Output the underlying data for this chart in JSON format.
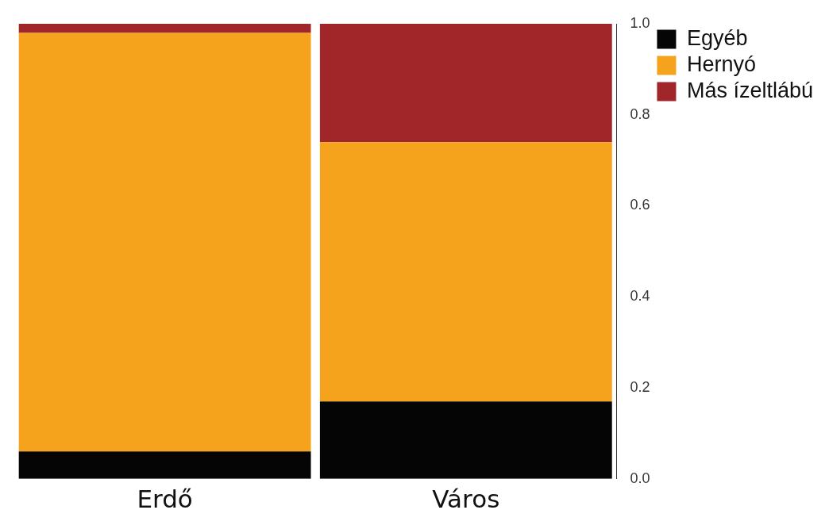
{
  "chart_data": {
    "type": "bar",
    "stacked": true,
    "categories": [
      "Erdő",
      "Város"
    ],
    "series": [
      {
        "name": "Egyéb",
        "color": "#050505",
        "values": [
          0.06,
          0.17
        ]
      },
      {
        "name": "Hernyó",
        "color": "#f5a31c",
        "values": [
          0.92,
          0.57
        ]
      },
      {
        "name": "Más ízeltlábú",
        "color": "#a0262a",
        "values": [
          0.02,
          0.26
        ]
      }
    ],
    "ylim": [
      0,
      1
    ],
    "yticks": [
      {
        "value": 0,
        "label": "0.0"
      },
      {
        "value": 0.2,
        "label": "0.2"
      },
      {
        "value": 0.4,
        "label": "0.4"
      },
      {
        "value": 0.6,
        "label": "0.6"
      },
      {
        "value": 0.8,
        "label": "0.8"
      },
      {
        "value": 1,
        "label": "1.0"
      }
    ],
    "grid": false,
    "legend": "top right"
  }
}
